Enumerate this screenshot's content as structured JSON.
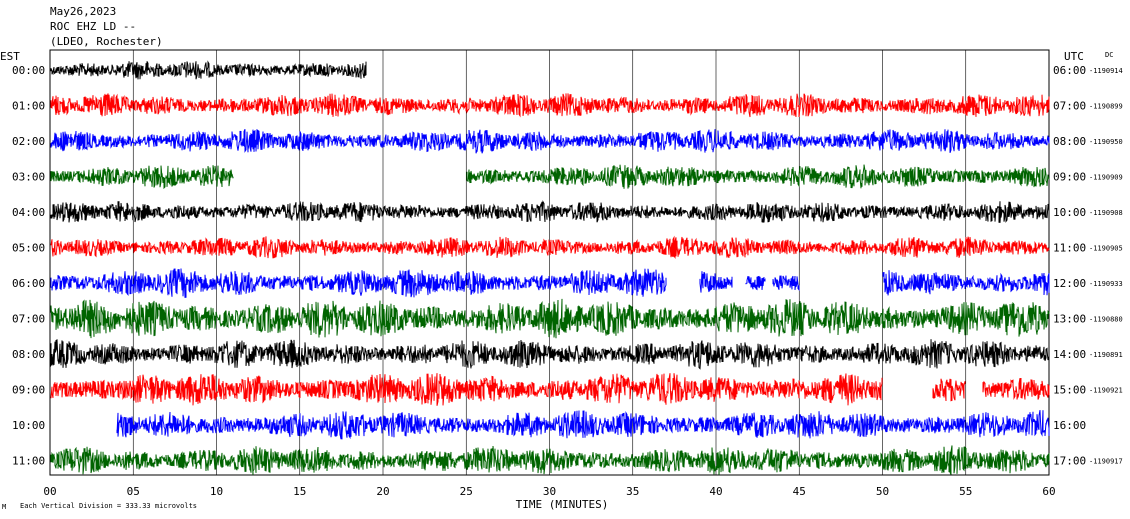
{
  "header": {
    "date": "May26,2023",
    "station": "ROC EHZ LD --",
    "network": "(LDEO, Rochester)"
  },
  "chart_data": {
    "type": "line",
    "title": "",
    "xlabel": "TIME (MINUTES)",
    "x_ticks": [
      "00",
      "05",
      "10",
      "15",
      "20",
      "25",
      "30",
      "35",
      "40",
      "45",
      "50",
      "55",
      "60"
    ],
    "xlim": [
      0,
      60
    ],
    "left_axis_label": "EST",
    "right_axis_label": "UTC",
    "right_axis_note": "DC",
    "rows": [
      {
        "est": "00:00",
        "utc": "06:00",
        "dc": "-1190914",
        "color": "#000000",
        "amp": 0.8,
        "end": 19
      },
      {
        "est": "01:00",
        "utc": "07:00",
        "dc": "-1190899",
        "color": "#ff0000",
        "amp": 1.0,
        "end": 60
      },
      {
        "est": "02:00",
        "utc": "08:00",
        "dc": "-1190950",
        "color": "#0000ff",
        "amp": 1.0,
        "end": 60
      },
      {
        "est": "03:00",
        "utc": "09:00",
        "dc": "-1190909",
        "color": "#006400",
        "amp": 1.0,
        "end": 60
      },
      {
        "est": "04:00",
        "utc": "10:00",
        "dc": "-1190908",
        "color": "#000000",
        "amp": 0.9,
        "end": 60
      },
      {
        "est": "05:00",
        "utc": "11:00",
        "dc": "-1190905",
        "color": "#ff0000",
        "amp": 0.9,
        "end": 60
      },
      {
        "est": "06:00",
        "utc": "12:00",
        "dc": "-1190933",
        "color": "#0000ff",
        "amp": 1.2,
        "end": 60
      },
      {
        "est": "07:00",
        "utc": "13:00",
        "dc": "-1190880",
        "color": "#006400",
        "amp": 1.6,
        "end": 60
      },
      {
        "est": "08:00",
        "utc": "14:00",
        "dc": "-1190891",
        "color": "#000000",
        "amp": 1.2,
        "end": 60
      },
      {
        "est": "09:00",
        "utc": "15:00",
        "dc": "-1190921",
        "color": "#ff0000",
        "amp": 1.4,
        "end": 60
      },
      {
        "est": "10:00",
        "utc": "16:00",
        "dc": "",
        "color": "#0000ff",
        "amp": 1.2,
        "end": 60
      },
      {
        "est": "11:00",
        "utc": "17:00",
        "dc": "-1190917",
        "color": "#006400",
        "amp": 1.2,
        "end": 60
      }
    ],
    "gaps": [
      {
        "row": 3,
        "from": 11,
        "to": 25
      },
      {
        "row": 6,
        "from": 37,
        "to": 39
      },
      {
        "row": 6,
        "from": 41,
        "to": 41.8
      },
      {
        "row": 6,
        "from": 43,
        "to": 42.5
      },
      {
        "row": 6,
        "from": 45,
        "to": 50
      },
      {
        "row": 9,
        "from": 50,
        "to": 53
      },
      {
        "row": 9,
        "from": 55,
        "to": 56
      },
      {
        "row": 10,
        "from": 0,
        "to": 4
      }
    ],
    "grid": true
  },
  "footer": {
    "scale_note": "Each Vertical Division =  333.33 microvolts"
  }
}
